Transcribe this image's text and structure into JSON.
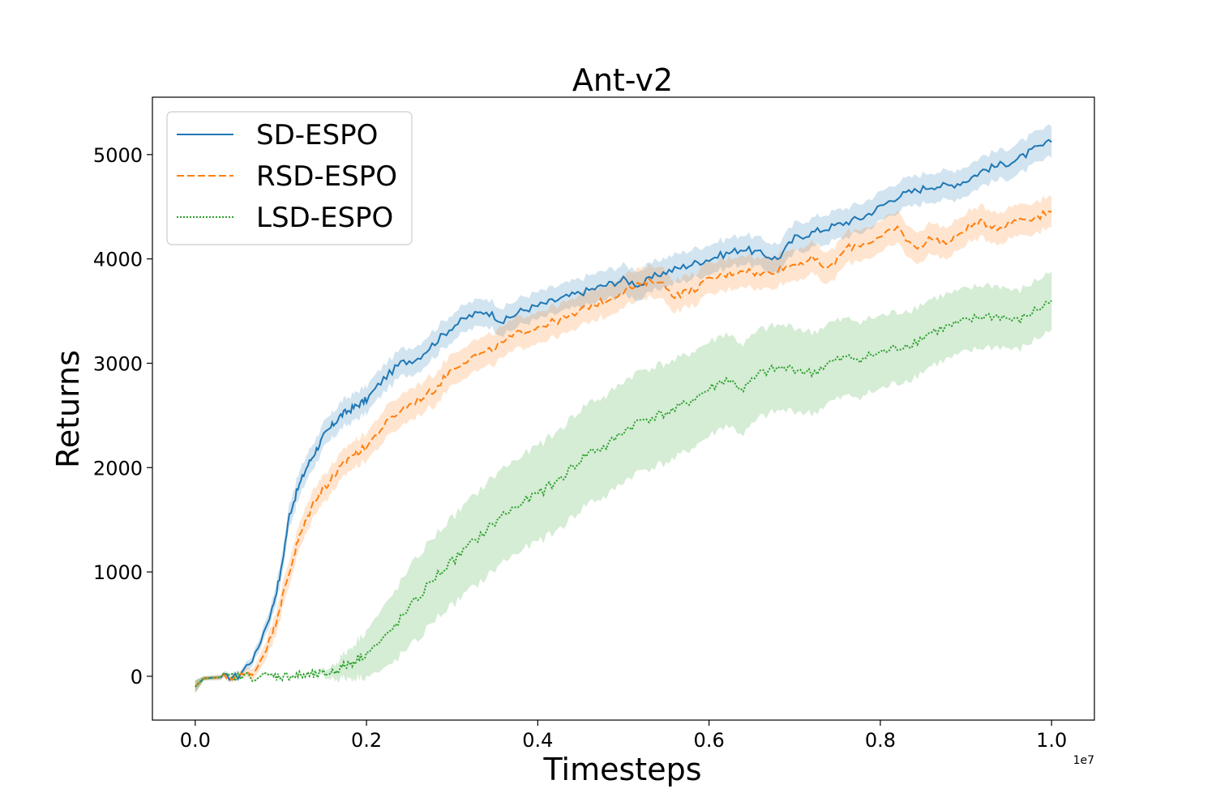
{
  "chart_data": {
    "type": "line",
    "title": "Ant-v2",
    "xlabel": "Timesteps",
    "ylabel": "Returns",
    "x_offset_label": "1e7",
    "xlim": [
      -0.05,
      1.05
    ],
    "ylim": [
      -420,
      5550
    ],
    "xticks": [
      0.0,
      0.2,
      0.4,
      0.6,
      0.8,
      1.0
    ],
    "xtick_labels": [
      "0.0",
      "0.2",
      "0.4",
      "0.6",
      "0.8",
      "1.0"
    ],
    "yticks": [
      0,
      1000,
      2000,
      3000,
      4000,
      5000
    ],
    "ytick_labels": [
      "0",
      "1000",
      "2000",
      "3000",
      "4000",
      "5000"
    ],
    "legend_position": "top-left",
    "x": [
      0.0,
      0.01,
      0.03,
      0.05,
      0.07,
      0.09,
      0.1,
      0.11,
      0.12,
      0.13,
      0.14,
      0.15,
      0.16,
      0.17,
      0.18,
      0.19,
      0.2,
      0.22,
      0.24,
      0.26,
      0.28,
      0.3,
      0.32,
      0.34,
      0.36,
      0.38,
      0.4,
      0.42,
      0.44,
      0.46,
      0.48,
      0.5,
      0.52,
      0.54,
      0.56,
      0.58,
      0.6,
      0.62,
      0.64,
      0.66,
      0.68,
      0.7,
      0.72,
      0.74,
      0.76,
      0.78,
      0.8,
      0.82,
      0.84,
      0.86,
      0.88,
      0.9,
      0.92,
      0.94,
      0.96,
      0.98,
      1.0
    ],
    "series": [
      {
        "name": "SD-ESPO",
        "color": "#1f77b4",
        "dash": "solid",
        "values": [
          -100,
          -20,
          -10,
          0,
          200,
          650,
          1000,
          1550,
          1800,
          2000,
          2150,
          2300,
          2400,
          2500,
          2550,
          2600,
          2650,
          2850,
          3000,
          3050,
          3200,
          3350,
          3450,
          3500,
          3400,
          3500,
          3550,
          3600,
          3650,
          3700,
          3750,
          3800,
          3750,
          3850,
          3900,
          3950,
          4000,
          4050,
          4100,
          4050,
          4000,
          4200,
          4250,
          4300,
          4350,
          4400,
          4500,
          4600,
          4650,
          4700,
          4700,
          4750,
          4850,
          4900,
          4950,
          5050,
          5120
        ],
        "band": [
          60,
          20,
          25,
          30,
          50,
          80,
          100,
          110,
          120,
          120,
          120,
          120,
          120,
          130,
          130,
          130,
          130,
          130,
          130,
          130,
          130,
          130,
          130,
          130,
          130,
          130,
          130,
          130,
          130,
          140,
          140,
          140,
          140,
          140,
          140,
          140,
          140,
          140,
          140,
          140,
          140,
          140,
          140,
          140,
          140,
          140,
          140,
          140,
          140,
          140,
          140,
          140,
          140,
          140,
          150,
          150,
          150
        ]
      },
      {
        "name": "RSD-ESPO",
        "color": "#ff7f0e",
        "dash": "dashed",
        "values": [
          -100,
          -20,
          -10,
          -5,
          50,
          400,
          700,
          1000,
          1300,
          1500,
          1700,
          1800,
          1900,
          2000,
          2100,
          2150,
          2200,
          2400,
          2550,
          2650,
          2750,
          2950,
          3050,
          3100,
          3200,
          3300,
          3350,
          3400,
          3450,
          3550,
          3600,
          3700,
          3750,
          3800,
          3650,
          3700,
          3800,
          3850,
          3900,
          3850,
          3900,
          3950,
          4000,
          3900,
          4100,
          4150,
          4200,
          4300,
          4100,
          4200,
          4150,
          4300,
          4350,
          4300,
          4380,
          4400,
          4450
        ],
        "band": [
          60,
          20,
          25,
          30,
          60,
          100,
          120,
          120,
          120,
          130,
          130,
          130,
          130,
          130,
          130,
          130,
          130,
          150,
          150,
          150,
          150,
          150,
          150,
          150,
          150,
          150,
          150,
          150,
          150,
          150,
          150,
          150,
          150,
          150,
          150,
          150,
          150,
          150,
          150,
          150,
          150,
          150,
          150,
          150,
          150,
          150,
          150,
          150,
          150,
          150,
          150,
          150,
          150,
          150,
          150,
          150,
          150
        ]
      },
      {
        "name": "LSD-ESPO",
        "color": "#2ca02c",
        "dash": "dotted",
        "values": [
          -100,
          -20,
          -10,
          -5,
          0,
          0,
          0,
          5,
          5,
          10,
          10,
          20,
          40,
          80,
          120,
          170,
          220,
          350,
          550,
          750,
          950,
          1100,
          1250,
          1400,
          1550,
          1650,
          1750,
          1850,
          2000,
          2150,
          2200,
          2350,
          2450,
          2500,
          2550,
          2650,
          2750,
          2850,
          2750,
          2900,
          2950,
          2950,
          2900,
          3000,
          3050,
          3050,
          3100,
          3150,
          3200,
          3300,
          3350,
          3400,
          3450,
          3450,
          3400,
          3500,
          3600
        ],
        "band": [
          60,
          20,
          10,
          10,
          10,
          10,
          10,
          10,
          10,
          15,
          20,
          30,
          60,
          100,
          140,
          180,
          220,
          300,
          350,
          400,
          400,
          420,
          430,
          450,
          450,
          450,
          460,
          470,
          480,
          480,
          480,
          480,
          480,
          480,
          470,
          460,
          450,
          440,
          430,
          420,
          410,
          400,
          390,
          380,
          370,
          360,
          350,
          340,
          330,
          320,
          310,
          300,
          300,
          290,
          280,
          280,
          280
        ]
      }
    ]
  }
}
